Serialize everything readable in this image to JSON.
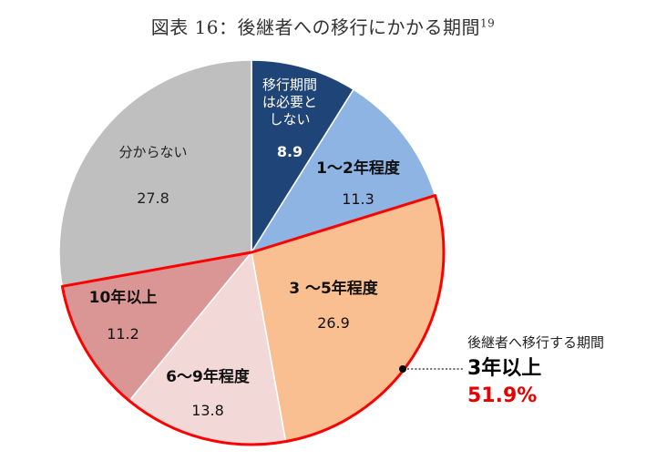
{
  "title": {
    "main": "図表 16：後継者への移行にかかる期間",
    "footnote": "19"
  },
  "chart_data": {
    "type": "pie",
    "unit": "%",
    "slices": [
      {
        "label": "移行期間\nは必要と\nしない",
        "value": 8.9,
        "color": "#1f4578",
        "text_color": "#ffffff",
        "label_bold": false,
        "value_bold": true
      },
      {
        "label": "1～2年程度",
        "value": 11.3,
        "color": "#8db4e2",
        "text_color": "#111111",
        "label_bold": true,
        "value_bold": false
      },
      {
        "label": "3 ～5年程度",
        "value": 26.9,
        "color": "#f9bf91",
        "text_color": "#111111",
        "label_bold": true,
        "value_bold": false
      },
      {
        "label": "6～9年程度",
        "value": 13.8,
        "color": "#f2d9d8",
        "text_color": "#111111",
        "label_bold": true,
        "value_bold": false
      },
      {
        "label": "10年以上",
        "value": 11.2,
        "color": "#da9694",
        "text_color": "#111111",
        "label_bold": true,
        "value_bold": false
      },
      {
        "label": "分からない",
        "value": 27.8,
        "color": "#bfbfbf",
        "text_color": "#222222",
        "label_bold": false,
        "value_bold": false
      }
    ],
    "highlight": {
      "slices": [
        "3 ～5年程度",
        "6～9年程度",
        "10年以上"
      ],
      "color": "#ff0000"
    },
    "callout": {
      "caption": "後継者へ移行する期間",
      "label": "3年以上",
      "value": "51.9%",
      "value_color": "#e60000"
    }
  }
}
